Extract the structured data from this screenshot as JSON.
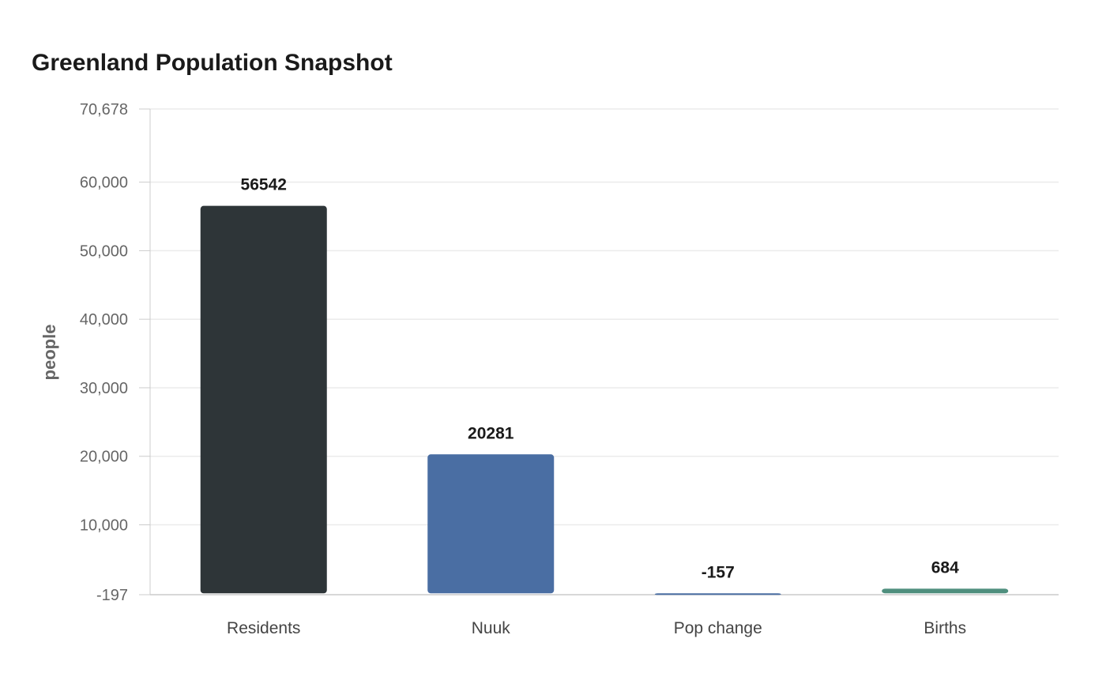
{
  "chart_data": {
    "type": "bar",
    "title": "Greenland Population Snapshot",
    "xlabel": "",
    "ylabel": "people",
    "categories": [
      "Residents",
      "Nuuk",
      "Pop change",
      "Births"
    ],
    "values": [
      56542,
      20281,
      -157,
      684
    ],
    "value_labels": [
      "56542",
      "20281",
      "-157",
      "684"
    ],
    "ylim": [
      -197,
      70678
    ],
    "yticks": [
      {
        "value": -197,
        "label": "-197"
      },
      {
        "value": 10000,
        "label": "10,000"
      },
      {
        "value": 20000,
        "label": "20,000"
      },
      {
        "value": 30000,
        "label": "30,000"
      },
      {
        "value": 40000,
        "label": "40,000"
      },
      {
        "value": 50000,
        "label": "50,000"
      },
      {
        "value": 60000,
        "label": "60,000"
      },
      {
        "value": 70678,
        "label": "70,678"
      }
    ],
    "colors": [
      "#2e3538",
      "#4a6ea3",
      "#4a6ea3",
      "#4f8f7e"
    ],
    "grid": true,
    "legend": "none"
  }
}
